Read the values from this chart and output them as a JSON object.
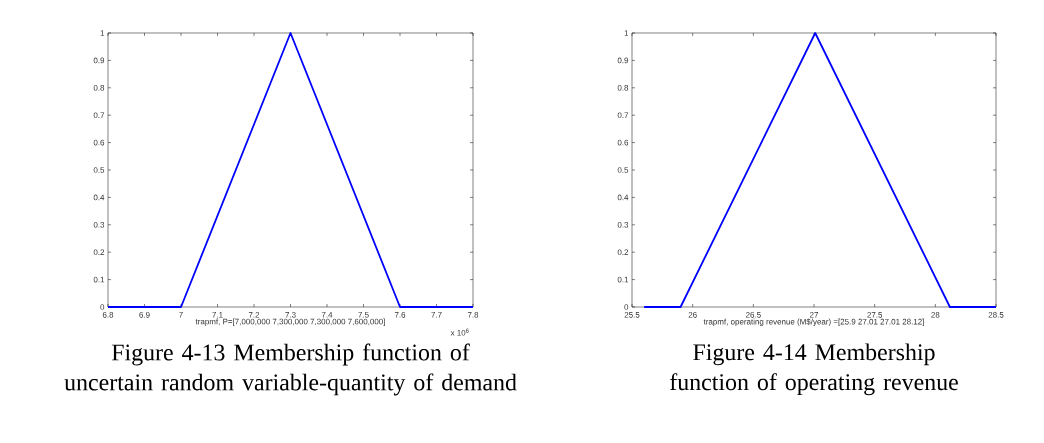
{
  "chart_data": [
    {
      "type": "line",
      "title": "Figure 4-13 Membership function of uncertain random variable-quantity of demand",
      "xlabel": "trapmf, P=[7,000,000 7,300,000 7,300,000 7,600,000]",
      "x": [
        6.8,
        7,
        7.3,
        7.6,
        7.8
      ],
      "series": [
        {
          "color": "#0000ff",
          "values": [
            0,
            0,
            1,
            0,
            0
          ]
        }
      ],
      "xlim": [
        6.8,
        7.8
      ],
      "xticks": [
        6.8,
        6.9,
        7,
        7.1,
        7.2,
        7.3,
        7.4,
        7.5,
        7.6,
        7.7,
        7.8
      ],
      "ylim": [
        0,
        1
      ],
      "yticks": [
        0,
        0.1,
        0.2,
        0.3,
        0.4,
        0.5,
        0.6,
        0.7,
        0.8,
        0.9,
        1
      ],
      "annotations": [
        "x 10$^{6}$"
      ]
    },
    {
      "type": "line",
      "title": "Figure 4-14 Membership function of operating revenue",
      "xlabel": "trapmf, operating revenue (M$/year) =[25.9 27.01 27.01 28.12]",
      "x": [
        25.6,
        25.9,
        27.01,
        28.12,
        28.5
      ],
      "series": [
        {
          "color": "#0000ff",
          "values": [
            0,
            0,
            1,
            0,
            0
          ]
        }
      ],
      "xlim": [
        25.5,
        28.5
      ],
      "xticks": [
        25.5,
        26,
        26.5,
        27,
        27.5,
        28,
        28.5
      ],
      "ylim": [
        0,
        1
      ],
      "yticks": [
        0,
        0.1,
        0.2,
        0.3,
        0.4,
        0.5,
        0.6,
        0.7,
        0.8,
        0.9,
        1
      ]
    }
  ]
}
